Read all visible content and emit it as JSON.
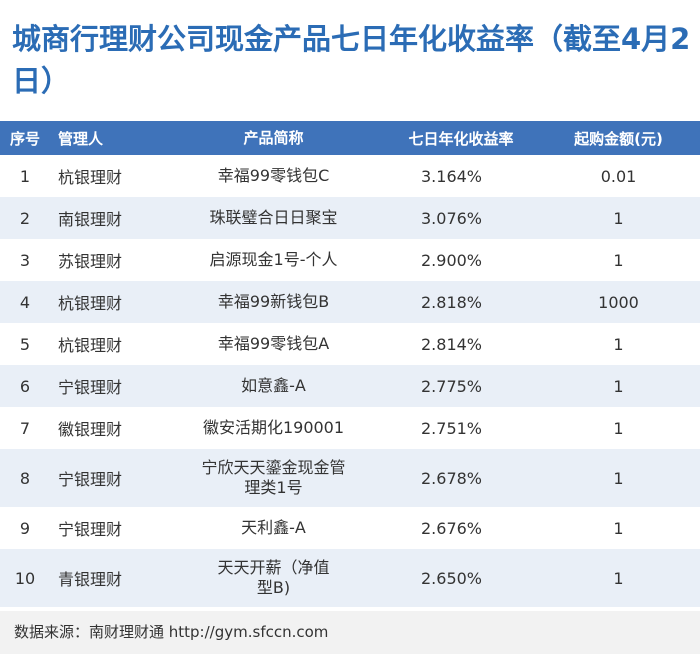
{
  "title": "城商行理财公司现金产品七日年化收益率（截至4月2日）",
  "table": {
    "headers": [
      "序号",
      "管理人",
      "产品简称",
      "七日年化收益率",
      "起购金额(元)"
    ],
    "rows": [
      {
        "no": "1",
        "manager": "杭银理财",
        "product": "幸福99零钱包C",
        "yield": "3.164%",
        "min": "0.01"
      },
      {
        "no": "2",
        "manager": "南银理财",
        "product": "珠联璧合日日聚宝",
        "yield": "3.076%",
        "min": "1"
      },
      {
        "no": "3",
        "manager": "苏银理财",
        "product": "启源现金1号-个人",
        "yield": "2.900%",
        "min": "1"
      },
      {
        "no": "4",
        "manager": "杭银理财",
        "product": "幸福99新钱包B",
        "yield": "2.818%",
        "min": "1000"
      },
      {
        "no": "5",
        "manager": "杭银理财",
        "product": "幸福99零钱包A",
        "yield": "2.814%",
        "min": "1"
      },
      {
        "no": "6",
        "manager": "宁银理财",
        "product": "如意鑫-A",
        "yield": "2.775%",
        "min": "1"
      },
      {
        "no": "7",
        "manager": "徽银理财",
        "product": "徽安活期化190001",
        "yield": "2.751%",
        "min": "1"
      },
      {
        "no": "8",
        "manager": "宁银理财",
        "product": "宁欣天天鎏金现金管理类1号",
        "yield": "2.678%",
        "min": "1"
      },
      {
        "no": "9",
        "manager": "宁银理财",
        "product": "天利鑫-A",
        "yield": "2.676%",
        "min": "1"
      },
      {
        "no": "10",
        "manager": "青银理财",
        "product": "天天开薪（净值型B)",
        "yield": "2.650%",
        "min": "1"
      }
    ]
  },
  "footer": {
    "source": "数据来源：南财理财通 http://gym.sfccn.com"
  }
}
